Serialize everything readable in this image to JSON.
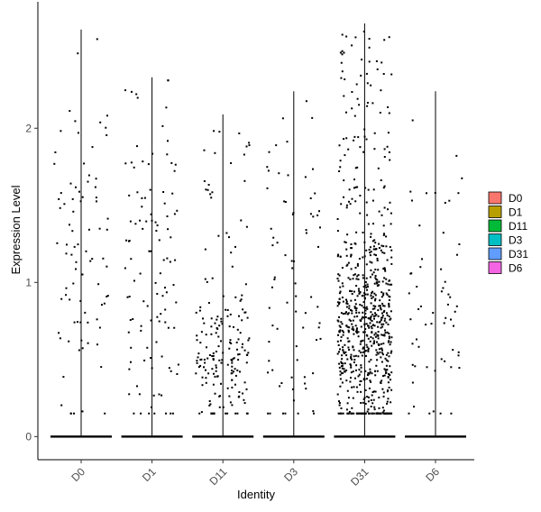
{
  "chart_data": {
    "type": "scatter",
    "subtype": "violin-jitter",
    "title": "",
    "xlabel": "Identity",
    "ylabel": "Expression Level",
    "ylim": [
      -0.15,
      2.82
    ],
    "yticks": [
      0,
      1,
      2
    ],
    "ytick_labels": [
      "0",
      "1",
      "2"
    ],
    "categories": [
      "D0",
      "D1",
      "D11",
      "D3",
      "D31",
      "D6"
    ],
    "legend": {
      "placement": "right",
      "entries": [
        {
          "label": "D0",
          "color": "#F8766D"
        },
        {
          "label": "D1",
          "color": "#B79F00"
        },
        {
          "label": "D11",
          "color": "#00BA38"
        },
        {
          "label": "D3",
          "color": "#00BFC4"
        },
        {
          "label": "D31",
          "color": "#619CFF"
        },
        {
          "label": "D6",
          "color": "#F564E3"
        }
      ]
    },
    "series": [
      {
        "category": "D0",
        "violin_max": 2.64,
        "n_nonzero": 85,
        "mean_nonzero": 1.1,
        "sd_nonzero": 0.6
      },
      {
        "category": "D1",
        "violin_max": 2.33,
        "n_nonzero": 110,
        "mean_nonzero": 0.95,
        "sd_nonzero": 0.55
      },
      {
        "category": "D11",
        "violin_max": 2.09,
        "n_nonzero": 190,
        "mean_nonzero": 0.5,
        "sd_nonzero": 0.25
      },
      {
        "category": "D3",
        "violin_max": 2.24,
        "n_nonzero": 75,
        "mean_nonzero": 0.9,
        "sd_nonzero": 0.55
      },
      {
        "category": "D31",
        "violin_max": 2.68,
        "n_nonzero": 760,
        "mean_nonzero": 0.65,
        "sd_nonzero": 0.35
      },
      {
        "category": "D6",
        "violin_max": 2.24,
        "n_nonzero": 60,
        "mean_nonzero": 0.75,
        "sd_nonzero": 0.5
      }
    ]
  }
}
